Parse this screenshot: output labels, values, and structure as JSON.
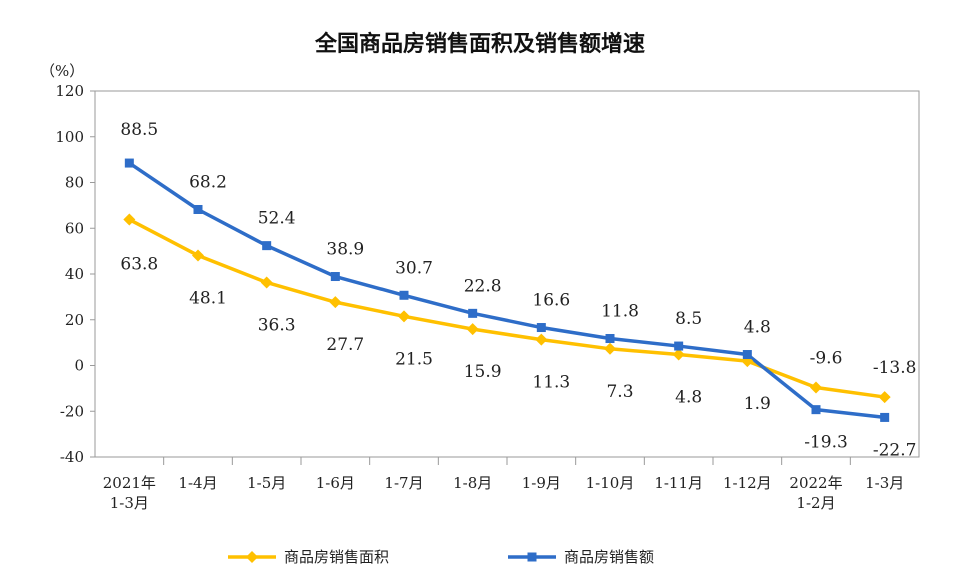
{
  "chart_data": {
    "type": "line",
    "title": "全国商品房销售面积及销售额增速",
    "yunit": "（%）",
    "ylim": [
      -40,
      120
    ],
    "yticks": [
      "120",
      "100",
      "80",
      "60",
      "40",
      "20",
      "0",
      "-20",
      "-40"
    ],
    "categories": [
      [
        "2021年",
        "1-3月"
      ],
      [
        "1-4月"
      ],
      [
        "1-5月"
      ],
      [
        "1-6月"
      ],
      [
        "1-7月"
      ],
      [
        "1-8月"
      ],
      [
        "1-9月"
      ],
      [
        "1-10月"
      ],
      [
        "1-11月"
      ],
      [
        "1-12月"
      ],
      [
        "2022年",
        "1-2月"
      ],
      [
        "1-3月"
      ]
    ],
    "series": [
      {
        "name": "商品房销售面积",
        "color": "#FFC000",
        "marker": "diamond",
        "values": [
          63.8,
          48.1,
          36.3,
          27.7,
          21.5,
          15.9,
          11.3,
          7.3,
          4.8,
          1.9,
          -9.6,
          -13.8
        ],
        "labels": [
          "63.8",
          "48.1",
          "36.3",
          "27.7",
          "21.5",
          "15.9",
          "11.3",
          "7.3",
          "4.8",
          "1.9",
          "-9.6",
          "-13.8"
        ]
      },
      {
        "name": "商品房销售额",
        "color": "#2E6DC8",
        "marker": "square",
        "values": [
          88.5,
          68.2,
          52.4,
          38.9,
          30.7,
          22.8,
          16.6,
          11.8,
          8.5,
          4.8,
          -19.3,
          -22.7
        ],
        "labels": [
          "88.5",
          "68.2",
          "52.4",
          "38.9",
          "30.7",
          "22.8",
          "16.6",
          "11.8",
          "8.5",
          "4.8",
          "-19.3",
          "-22.7"
        ]
      }
    ],
    "grid": false,
    "legend": "bottom"
  }
}
